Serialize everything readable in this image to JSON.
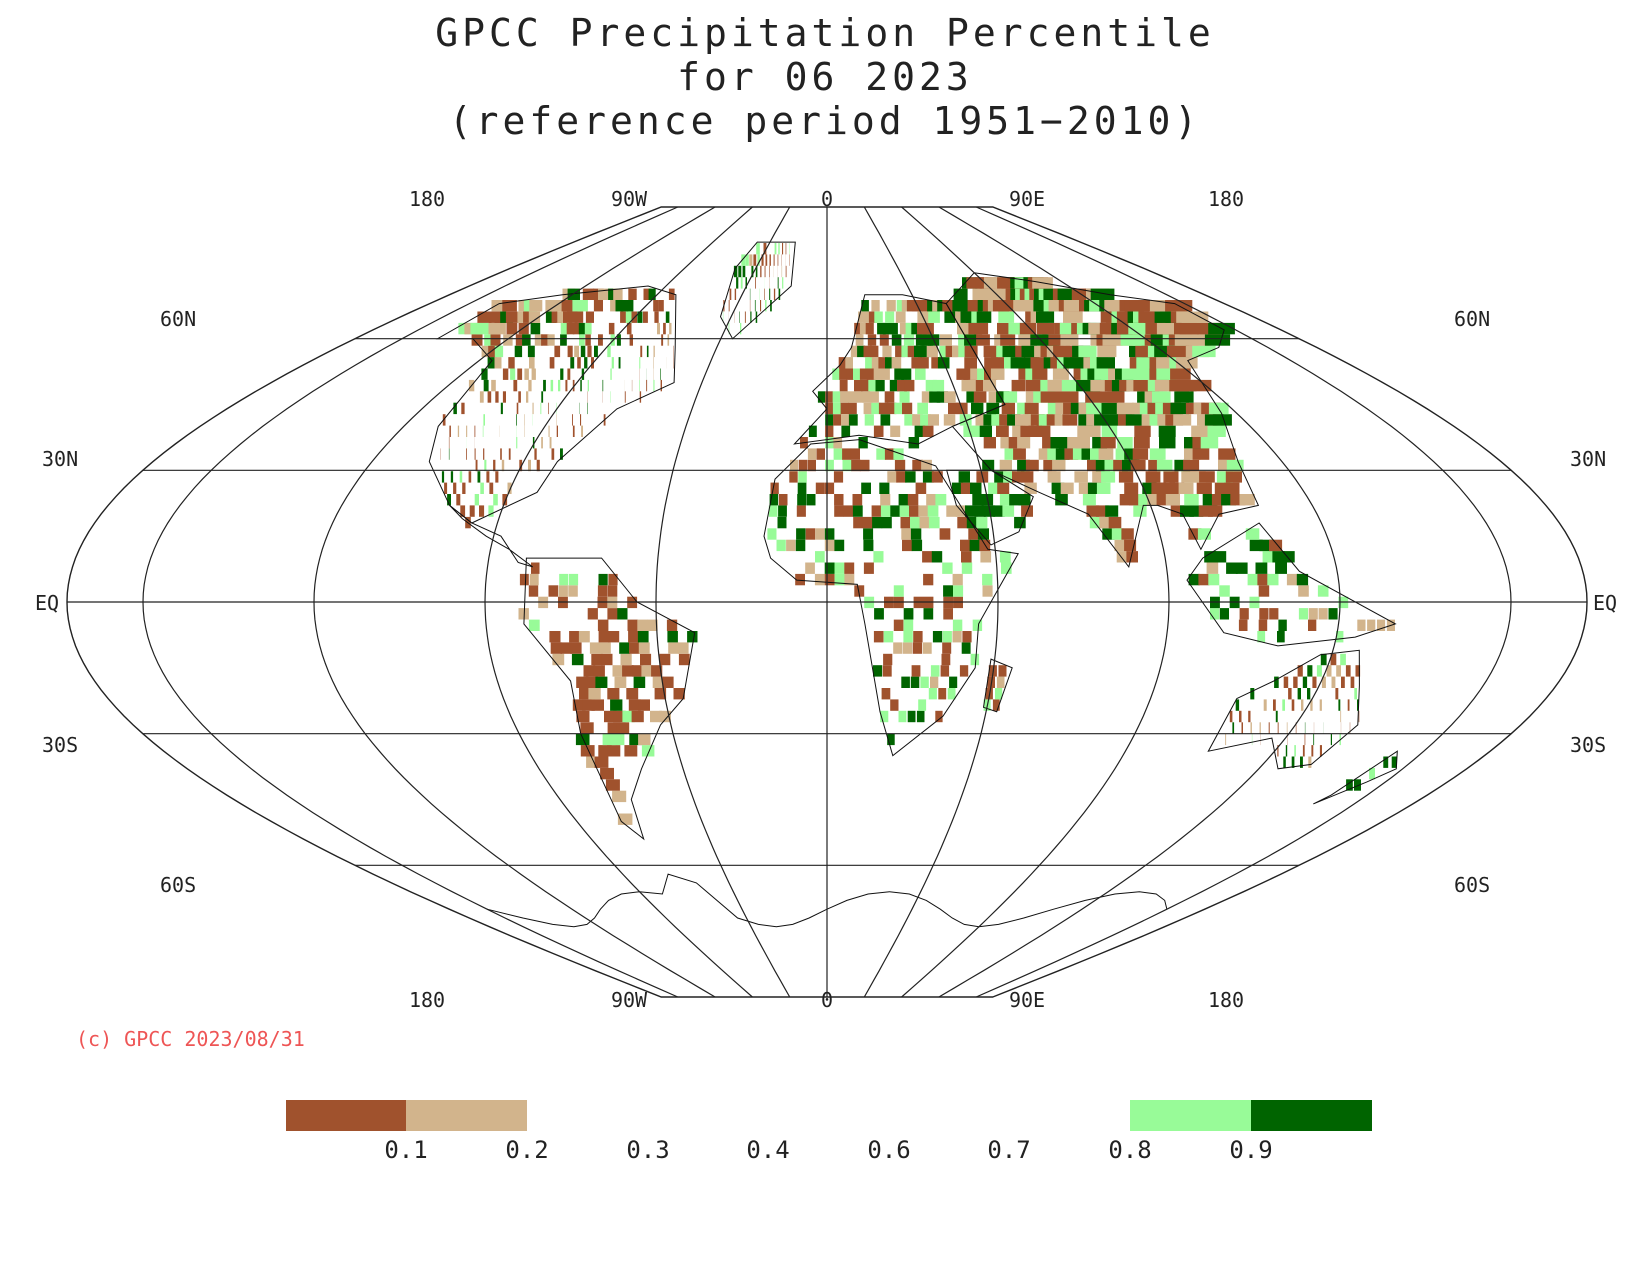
{
  "title": {
    "line1": "GPCC Precipitation Percentile",
    "line2": "for 06 2023",
    "line3": "(reference period 1951−2010)"
  },
  "copyright": "(c) GPCC 2023/08/31",
  "longitude_labels": [
    "180",
    "90W",
    "0",
    "90E",
    "180"
  ],
  "latitude_labels": {
    "60N": "60N",
    "30N": "30N",
    "EQ": "EQ",
    "30S": "30S",
    "60S": "60S"
  },
  "legend": {
    "bins": [
      {
        "range": "< 0.1",
        "color": "#a0522d"
      },
      {
        "range": "0.1 - 0.2",
        "color": "#d2b48c"
      },
      {
        "range": "0.2 - 0.8",
        "color": "#ffffff"
      },
      {
        "range": "0.8 - 0.9",
        "color": "#98fb98"
      },
      {
        "range": "> 0.9",
        "color": "#006400"
      }
    ],
    "labels": [
      "0.1",
      "0.2",
      "0.3",
      "0.4",
      "0.6",
      "0.7",
      "0.8",
      "0.9"
    ]
  },
  "colors": {
    "very_dry": "#a0522d",
    "dry": "#d2b48c",
    "wet": "#98fb98",
    "very_wet": "#006400",
    "copyright": "#ee5555"
  }
}
